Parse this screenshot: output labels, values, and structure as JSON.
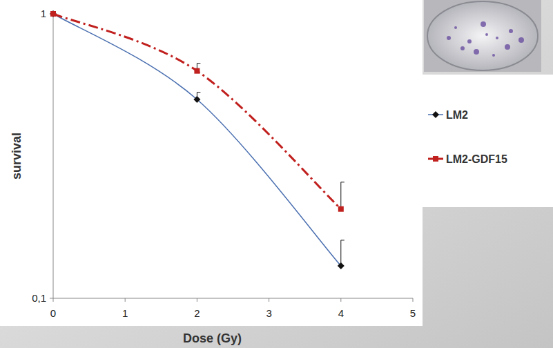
{
  "chart_data": {
    "type": "line",
    "x_label": "Dose (Gy)",
    "y_label": "survival",
    "x": [
      0,
      2,
      4
    ],
    "series": [
      {
        "name": "LM2",
        "color": "#4a6fb0",
        "marker": "diamond",
        "line_style": "solid",
        "values": [
          1,
          0.5,
          0.13
        ],
        "errors": [
          0,
          0.03,
          0.03
        ]
      },
      {
        "name": "LM2-GDF15",
        "color": "#c0201e",
        "marker": "square",
        "line_style": "dashdot",
        "values": [
          1,
          0.63,
          0.206
        ],
        "errors": [
          0,
          0.04,
          0.05
        ]
      }
    ],
    "xlim": [
      0,
      5
    ],
    "xticks": [
      0,
      1,
      2,
      3,
      4,
      5
    ],
    "ylim": [
      0.1,
      1
    ],
    "yticks": [
      {
        "value": 0.1,
        "label": "0,1"
      },
      1
    ],
    "log": "y",
    "grid": false,
    "legend": "right"
  }
}
